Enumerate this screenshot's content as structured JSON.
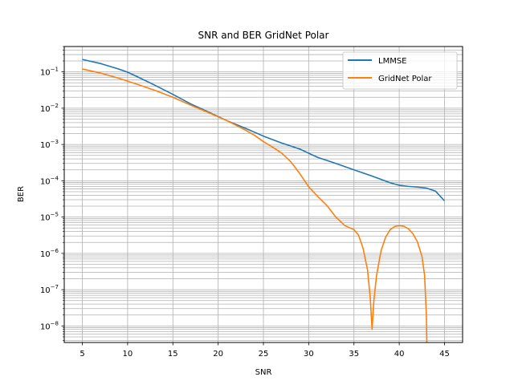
{
  "chart_data": {
    "type": "line",
    "title": "SNR and BER GridNet Polar",
    "xlabel": "SNR",
    "ylabel": "BER",
    "xlim": [
      3,
      47
    ],
    "ylim": [
      3.5e-09,
      0.5
    ],
    "yscale": "log",
    "grid": "both-major-minor",
    "legend_position": "top-right",
    "xticks": [
      5,
      10,
      15,
      20,
      25,
      30,
      35,
      40,
      45
    ],
    "yticks": [
      {
        "value": 1e-08,
        "base": "10",
        "exp": "−8"
      },
      {
        "value": 1e-07,
        "base": "10",
        "exp": "−7"
      },
      {
        "value": 1e-06,
        "base": "10",
        "exp": "−6"
      },
      {
        "value": 1e-05,
        "base": "10",
        "exp": "−5"
      },
      {
        "value": 0.0001,
        "base": "10",
        "exp": "−4"
      },
      {
        "value": 0.001,
        "base": "10",
        "exp": "−3"
      },
      {
        "value": 0.01,
        "base": "10",
        "exp": "−2"
      },
      {
        "value": 0.1,
        "base": "10",
        "exp": "−1"
      }
    ],
    "series": [
      {
        "name": "LMMSE",
        "color": "#1f77b4",
        "x": [
          5,
          7,
          9,
          10,
          11,
          13,
          15,
          17,
          19,
          21,
          23,
          25,
          27,
          29,
          31,
          33,
          35,
          37,
          39,
          40,
          41,
          42,
          43,
          44,
          45
        ],
        "y": [
          0.22,
          0.17,
          0.12,
          0.098,
          0.075,
          0.043,
          0.024,
          0.013,
          0.0077,
          0.0045,
          0.0028,
          0.0017,
          0.0011,
          0.00075,
          0.00044,
          0.0003,
          0.0002,
          0.000135,
          8.8e-05,
          7.5e-05,
          7e-05,
          6.7e-05,
          6.3e-05,
          5.2e-05,
          2.8e-05
        ]
      },
      {
        "name": "GridNet Polar",
        "color": "#ff7f0e",
        "x": [
          5,
          7,
          9,
          11,
          13,
          15,
          17,
          19,
          21,
          23,
          24,
          25,
          26,
          27,
          28,
          29,
          30,
          31,
          32,
          33,
          34,
          35,
          35.5,
          36,
          36.5,
          36.8,
          37,
          37.2,
          37.5,
          38,
          38.5,
          39,
          39.5,
          40,
          40.5,
          41,
          41.5,
          42,
          42.5,
          42.8,
          43,
          43.05
        ],
        "y": [
          0.12,
          0.093,
          0.067,
          0.046,
          0.031,
          0.02,
          0.012,
          0.0074,
          0.0045,
          0.0025,
          0.0018,
          0.0012,
          0.00085,
          0.00058,
          0.00034,
          0.00016,
          6.8e-05,
          3.7e-05,
          2.1e-05,
          1e-05,
          5.8e-06,
          4.5e-06,
          3.2e-06,
          1.4e-06,
          3.5e-07,
          6e-08,
          8e-09,
          5e-08,
          2.5e-07,
          1.2e-06,
          2.8e-06,
          4.5e-06,
          5.5e-06,
          5.8e-06,
          5.6e-06,
          4.8e-06,
          3.5e-06,
          2.1e-06,
          8.5e-07,
          2.5e-07,
          2e-08,
          3.5e-09
        ]
      }
    ]
  }
}
